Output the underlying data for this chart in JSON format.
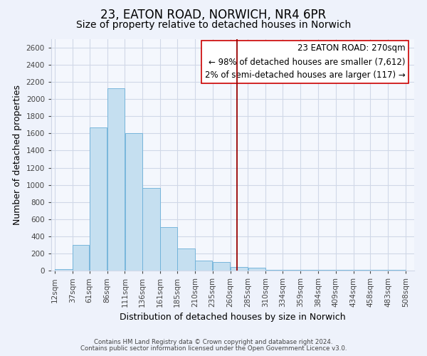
{
  "title": "23, EATON ROAD, NORWICH, NR4 6PR",
  "subtitle": "Size of property relative to detached houses in Norwich",
  "xlabel": "Distribution of detached houses by size in Norwich",
  "ylabel": "Number of detached properties",
  "bar_left_edges": [
    12,
    37,
    61,
    86,
    111,
    136,
    161,
    185,
    210,
    235,
    260,
    285,
    310,
    334,
    359,
    384,
    409,
    434,
    458,
    483
  ],
  "bar_widths": [
    25,
    24,
    25,
    25,
    25,
    25,
    24,
    25,
    25,
    25,
    25,
    25,
    24,
    25,
    25,
    25,
    25,
    24,
    25,
    25
  ],
  "bar_heights": [
    20,
    295,
    1670,
    2130,
    1600,
    965,
    510,
    255,
    120,
    100,
    40,
    30,
    10,
    5,
    5,
    5,
    5,
    5,
    5,
    10
  ],
  "bar_color": "#c5dff0",
  "bar_edge_color": "#6aafd8",
  "vline_x": 270,
  "vline_color": "#990000",
  "ylim": [
    0,
    2700
  ],
  "yticks": [
    0,
    200,
    400,
    600,
    800,
    1000,
    1200,
    1400,
    1600,
    1800,
    2000,
    2200,
    2400,
    2600
  ],
  "xtick_labels": [
    "12sqm",
    "37sqm",
    "61sqm",
    "86sqm",
    "111sqm",
    "136sqm",
    "161sqm",
    "185sqm",
    "210sqm",
    "235sqm",
    "260sqm",
    "285sqm",
    "310sqm",
    "334sqm",
    "359sqm",
    "384sqm",
    "409sqm",
    "434sqm",
    "458sqm",
    "483sqm",
    "508sqm"
  ],
  "xtick_positions": [
    12,
    37,
    61,
    86,
    111,
    136,
    161,
    185,
    210,
    235,
    260,
    285,
    310,
    334,
    359,
    384,
    409,
    434,
    458,
    483,
    508
  ],
  "annotation_title": "23 EATON ROAD: 270sqm",
  "annotation_line1": "← 98% of detached houses are smaller (7,612)",
  "annotation_line2": "2% of semi-detached houses are larger (117) →",
  "footer1": "Contains HM Land Registry data © Crown copyright and database right 2024.",
  "footer2": "Contains public sector information licensed under the Open Government Licence v3.0.",
  "bg_color": "#eef2fb",
  "plot_bg_color": "#f4f7fd",
  "grid_color": "#d0d8e8",
  "title_fontsize": 12,
  "subtitle_fontsize": 10,
  "tick_fontsize": 7.5,
  "ylabel_fontsize": 9,
  "xlabel_fontsize": 9
}
